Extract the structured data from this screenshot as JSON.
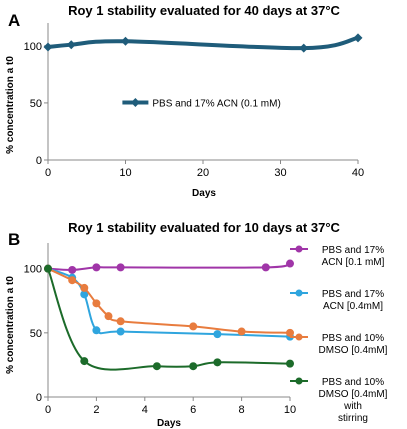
{
  "chart_data": [
    {
      "type": "line",
      "panel_label": "A",
      "title": "Roy 1 stability evaluated for 40 days at 37°C",
      "xlabel": "Days",
      "ylabel": "% concentration a t0",
      "xlim": [
        0,
        40
      ],
      "ylim": [
        0,
        120
      ],
      "xticks": [
        0,
        10,
        20,
        30,
        40
      ],
      "yticks": [
        0,
        50,
        100
      ],
      "grid": false,
      "legend": "inside-center",
      "series": [
        {
          "name": "PBS and 17% ACN (0.1 mM)",
          "color": "#1F5C7A",
          "x": [
            0,
            3,
            10,
            33,
            40
          ],
          "y": [
            99,
            101,
            104,
            98,
            107
          ]
        }
      ]
    },
    {
      "type": "line",
      "panel_label": "B",
      "title": "Roy 1 stability evaluated for 10 days at 37°C",
      "xlabel": "Days",
      "ylabel": "% concentration a t0",
      "xlim": [
        0,
        10
      ],
      "ylim": [
        0,
        120
      ],
      "xticks": [
        0,
        2,
        4,
        6,
        8,
        10
      ],
      "yticks": [
        0,
        50,
        100
      ],
      "grid": false,
      "legend": "right",
      "series": [
        {
          "name": "PBS and 17% ACN [0.1 mM]",
          "color": "#A035A8",
          "x": [
            0,
            1,
            2,
            3,
            9,
            10
          ],
          "y": [
            100,
            99,
            101,
            101,
            101,
            104
          ]
        },
        {
          "name": "PBS and 17% ACN [0.4mM]",
          "color": "#2FA5DE",
          "x": [
            0,
            1,
            1.5,
            2,
            3,
            7,
            10
          ],
          "y": [
            100,
            93,
            80,
            52,
            51,
            49,
            47
          ]
        },
        {
          "name": "PBS and 10% DMSO [0.4mM]",
          "color": "#E87C3E",
          "x": [
            0,
            1,
            1.5,
            2,
            2.5,
            3,
            6,
            8,
            10
          ],
          "y": [
            100,
            91,
            85,
            73,
            63,
            59,
            55,
            51,
            50
          ]
        },
        {
          "name": "PBS and 10% DMSO [0.4mM] with stirring",
          "color": "#1C6B2A",
          "x": [
            0,
            1.5,
            4.5,
            6,
            7,
            10
          ],
          "y": [
            100,
            28,
            24,
            24,
            27,
            26
          ]
        }
      ]
    }
  ]
}
